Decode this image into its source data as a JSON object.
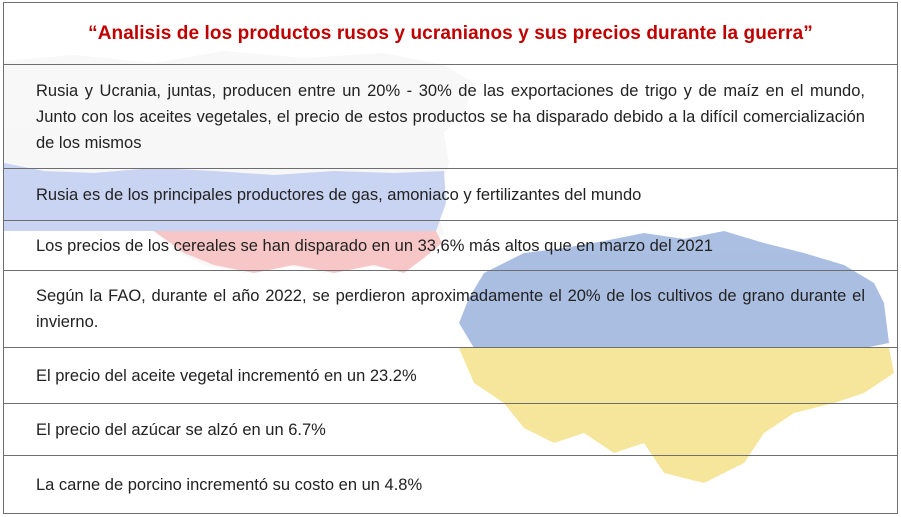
{
  "title": "“Analisis de los productos rusos y ucranianos y sus precios durante la guerra”",
  "rows": [
    "Rusia y Ucrania, juntas, producen entre un 20% - 30% de las exportaciones de trigo y de maíz en el mundo, Junto con los aceites vegetales, el precio de estos productos se ha disparado debido a la difícil comercialización de los mismos",
    "Rusia es de los principales productores de gas, amoniaco y fertilizantes del mundo",
    "Los precios de los cereales se han disparado en  un 33,6% más altos que en marzo del 2021",
    "Según la FAO, durante el año 2022, se perdieron aproximadamente el 20% de los cultivos de grano durante el  invierno.",
    "El precio del aceite vegetal incrementó en un 23.2%",
    "El precio del azúcar se alzó en un 6.7%",
    "La carne de porcino incrementó su costo en un 4.8%"
  ],
  "colors": {
    "title": "#c00000",
    "russia_white": "#f2f2f2",
    "russia_blue": "#9db0e8",
    "russia_red": "#f29a9a",
    "ukraine_blue": "#8ea9d8",
    "ukraine_yellow": "#f2de7a"
  }
}
